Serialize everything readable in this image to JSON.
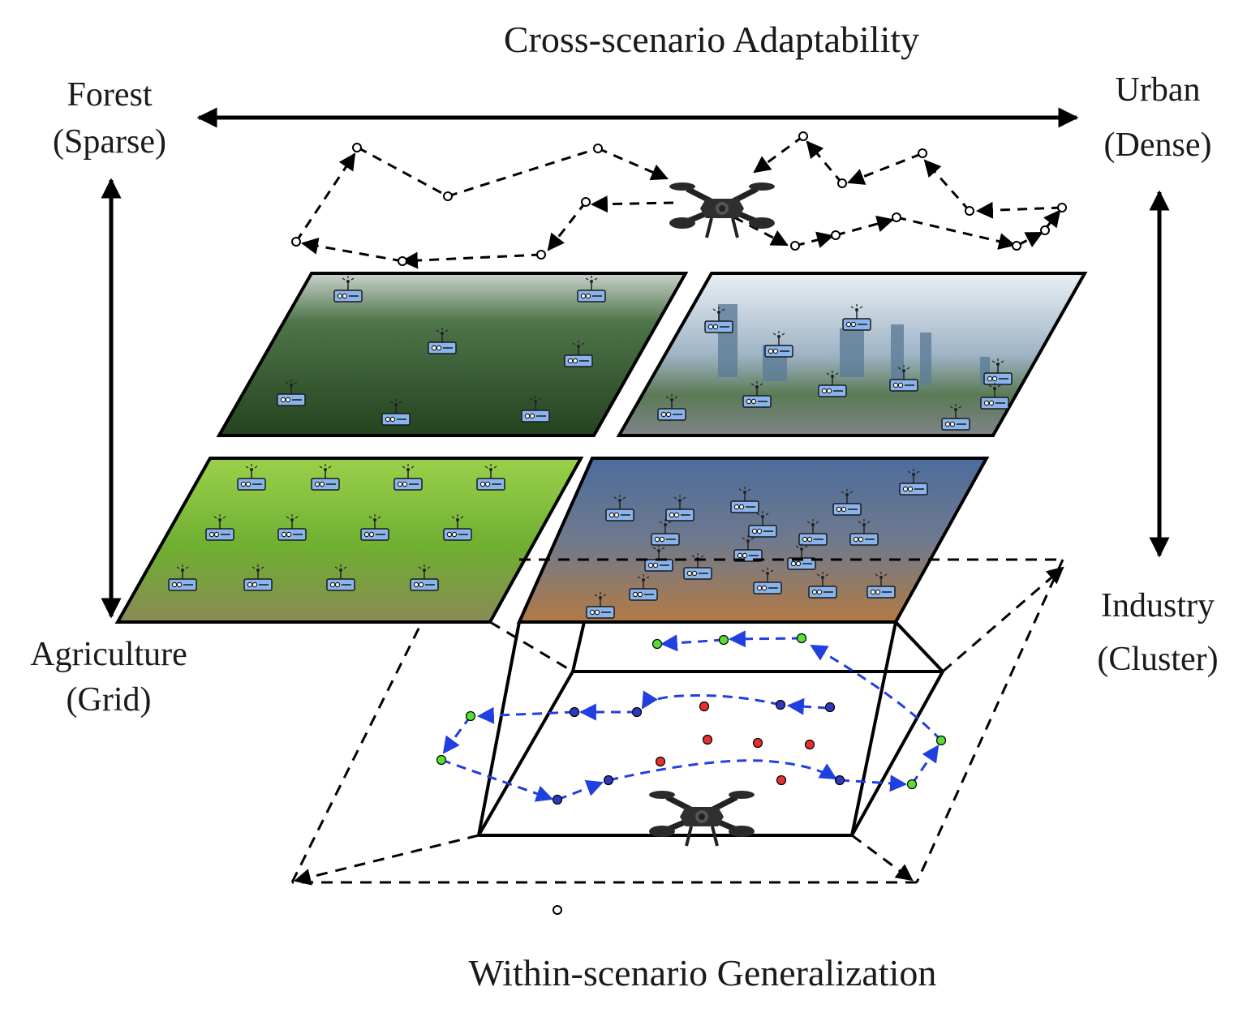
{
  "title_top": "Cross-scenario Adaptability",
  "title_bottom": "Within-scenario Generalization",
  "scenarios": {
    "forest": {
      "name": "Forest",
      "pattern": "(Sparse)"
    },
    "urban": {
      "name": "Urban",
      "pattern": "(Dense)"
    },
    "agriculture": {
      "name": "Agriculture",
      "pattern": "(Grid)"
    },
    "industry": {
      "name": "Industry",
      "pattern": "(Cluster)"
    }
  },
  "colors": {
    "arrow": "#000000",
    "trajectory": "#1f3fe0",
    "node_visited": "#55e035",
    "node_target": "#e53030",
    "node_pending": "#2e38b8",
    "sensor_body": "#8ab5ec",
    "forest_fill": "#2f5a2a",
    "urban_fill": "#b3bfca",
    "agri_fill": "#7fc23c",
    "industry_fill": "#5a6a88"
  },
  "icons": [
    "drone-icon",
    "sensor-node-icon"
  ]
}
